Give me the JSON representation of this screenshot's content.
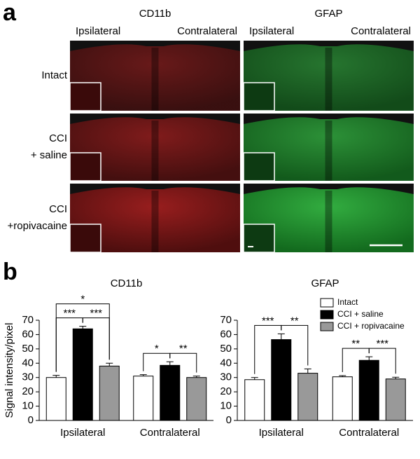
{
  "panel_a": {
    "label": "a",
    "columns": [
      {
        "title": "CD11b",
        "sides": [
          "Ipsilateral",
          "Contralateral"
        ],
        "color": "#d42020"
      },
      {
        "title": "GFAP",
        "sides": [
          "Ipsilateral",
          "Contralateral"
        ],
        "color": "#30c040"
      }
    ],
    "rows": [
      {
        "label": [
          "Intact"
        ]
      },
      {
        "label": [
          "CCI",
          "+ saline"
        ]
      },
      {
        "label": [
          "CCI",
          "+ropivacaine"
        ]
      }
    ]
  },
  "panel_b": {
    "label": "b"
  },
  "chart_data": [
    {
      "type": "bar",
      "title": "CD11b",
      "ylabel": "Signal intensity/pixel",
      "categories": [
        "Ipsilateral",
        "Contralateral"
      ],
      "ylim": [
        0,
        70
      ],
      "yticks": [
        0,
        10,
        20,
        30,
        40,
        50,
        60,
        70
      ],
      "series": [
        {
          "name": "Intact",
          "color": "#ffffff",
          "values": [
            30,
            31
          ],
          "errors": [
            1.5,
            1
          ]
        },
        {
          "name": "CCI + saline",
          "color": "#000000",
          "values": [
            64,
            38.5
          ],
          "errors": [
            1.8,
            2.5
          ]
        },
        {
          "name": "CCI + ropivacaine",
          "color": "#999999",
          "values": [
            38,
            30
          ],
          "errors": [
            2,
            1
          ]
        }
      ],
      "brackets": [
        {
          "category": 0,
          "from": 0,
          "to": 1,
          "label": "***"
        },
        {
          "category": 0,
          "from": 1,
          "to": 2,
          "label": "***"
        },
        {
          "category": 0,
          "from": 0,
          "to": 2,
          "label": "*"
        },
        {
          "category": 1,
          "from": 0,
          "to": 1,
          "label": "*"
        },
        {
          "category": 1,
          "from": 1,
          "to": 2,
          "label": "**"
        }
      ]
    },
    {
      "type": "bar",
      "title": "GFAP",
      "legend": "upper right",
      "categories": [
        "Ipsilateral",
        "Contralateral"
      ],
      "ylim": [
        0,
        70
      ],
      "yticks": [
        0,
        10,
        20,
        30,
        40,
        50,
        60,
        70
      ],
      "series": [
        {
          "name": "Intact",
          "color": "#ffffff",
          "values": [
            28.5,
            30.5
          ],
          "errors": [
            1.5,
            0.8
          ]
        },
        {
          "name": "CCI + saline",
          "color": "#000000",
          "values": [
            56.5,
            42
          ],
          "errors": [
            4,
            2.5
          ]
        },
        {
          "name": "CCI + ropivacaine",
          "color": "#999999",
          "values": [
            33,
            29
          ],
          "errors": [
            3,
            1.2
          ]
        }
      ],
      "brackets": [
        {
          "category": 0,
          "from": 0,
          "to": 1,
          "label": "***"
        },
        {
          "category": 0,
          "from": 1,
          "to": 2,
          "label": "**"
        },
        {
          "category": 1,
          "from": 0,
          "to": 1,
          "label": "**"
        },
        {
          "category": 1,
          "from": 1,
          "to": 2,
          "label": "***"
        }
      ]
    }
  ]
}
